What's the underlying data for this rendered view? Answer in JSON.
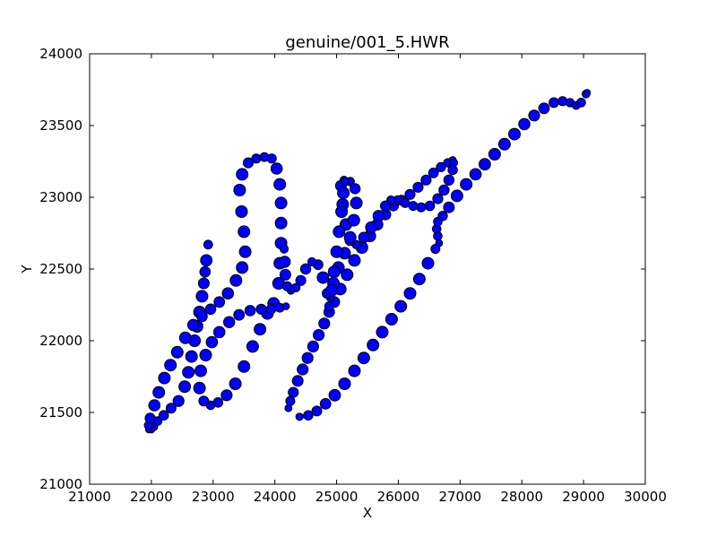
{
  "chart_data": {
    "type": "scatter",
    "title": "genuine/001_5.HWR",
    "xlabel": "X",
    "ylabel": "Y",
    "xlim": [
      21000,
      30000
    ],
    "ylim": [
      21000,
      24000
    ],
    "xticks": [
      "21000",
      "22000",
      "23000",
      "24000",
      "25000",
      "26000",
      "27000",
      "28000",
      "29000",
      "30000"
    ],
    "yticks": [
      "21000",
      "21500",
      "22000",
      "22500",
      "23000",
      "23500",
      "24000"
    ],
    "grid": false,
    "legend": "none",
    "marker_color": "#0000ff",
    "marker_edge_color": "#000000",
    "strokes": [
      {
        "name": "",
        "points": [
          [
            22920,
            22670
          ],
          [
            22890,
            22560
          ],
          [
            22870,
            22480
          ],
          [
            22850,
            22400
          ],
          [
            22820,
            22310
          ],
          [
            22780,
            22200
          ],
          [
            22740,
            22100
          ],
          [
            22700,
            22000
          ],
          [
            22650,
            21890
          ],
          [
            22600,
            21780
          ],
          [
            22540,
            21680
          ],
          [
            22440,
            21580
          ],
          [
            22320,
            21530
          ],
          [
            22200,
            21480
          ],
          [
            22100,
            21440
          ],
          [
            22040,
            21400
          ],
          [
            22000,
            21380
          ],
          [
            21960,
            21380
          ],
          [
            21950,
            21410
          ],
          [
            21980,
            21460
          ],
          [
            22050,
            21550
          ],
          [
            22120,
            21640
          ],
          [
            22210,
            21740
          ],
          [
            22310,
            21830
          ],
          [
            22420,
            21920
          ],
          [
            22550,
            22020
          ],
          [
            22680,
            22110
          ],
          [
            22820,
            22170
          ],
          [
            22960,
            22220
          ],
          [
            23100,
            22270
          ],
          [
            23240,
            22330
          ],
          [
            23370,
            22420
          ],
          [
            23470,
            22510
          ],
          [
            23520,
            22620
          ],
          [
            23500,
            22760
          ],
          [
            23460,
            22900
          ],
          [
            23430,
            23050
          ],
          [
            23470,
            23160
          ],
          [
            23570,
            23240
          ],
          [
            23700,
            23270
          ],
          [
            23830,
            23280
          ],
          [
            23950,
            23270
          ],
          [
            24030,
            23200
          ],
          [
            24080,
            23090
          ],
          [
            24100,
            22960
          ],
          [
            24100,
            22820
          ],
          [
            24100,
            22680
          ],
          [
            24080,
            22540
          ],
          [
            24060,
            22400
          ],
          [
            23980,
            22260
          ],
          [
            23880,
            22190
          ],
          [
            23760,
            22080
          ],
          [
            23640,
            21960
          ],
          [
            23500,
            21820
          ],
          [
            23360,
            21700
          ],
          [
            23220,
            21620
          ],
          [
            23080,
            21570
          ],
          [
            22960,
            21550
          ],
          [
            22850,
            21580
          ],
          [
            22780,
            21670
          ],
          [
            22800,
            21790
          ],
          [
            22880,
            21900
          ],
          [
            22980,
            21990
          ],
          [
            23100,
            22060
          ],
          [
            23260,
            22130
          ],
          [
            23420,
            22180
          ],
          [
            23600,
            22210
          ],
          [
            23780,
            22220
          ],
          [
            23940,
            22220
          ],
          [
            24080,
            22230
          ],
          [
            24180,
            22240
          ]
        ]
      },
      {
        "name": "",
        "points": [
          [
            24220,
            21530
          ],
          [
            24250,
            21580
          ],
          [
            24300,
            21640
          ],
          [
            24370,
            21720
          ],
          [
            24450,
            21800
          ],
          [
            24530,
            21880
          ],
          [
            24620,
            21960
          ],
          [
            24710,
            22040
          ],
          [
            24800,
            22120
          ],
          [
            24880,
            22200
          ],
          [
            24960,
            22270
          ],
          [
            25060,
            22360
          ],
          [
            25170,
            22460
          ],
          [
            25290,
            22560
          ],
          [
            25410,
            22650
          ],
          [
            25540,
            22730
          ],
          [
            25660,
            22810
          ],
          [
            25790,
            22880
          ],
          [
            25920,
            22940
          ],
          [
            26050,
            22980
          ],
          [
            26190,
            23020
          ],
          [
            26320,
            23070
          ],
          [
            26450,
            23120
          ],
          [
            26570,
            23170
          ],
          [
            26690,
            23210
          ],
          [
            26800,
            23240
          ],
          [
            26880,
            23260
          ],
          [
            26900,
            23240
          ],
          [
            26880,
            23190
          ],
          [
            26820,
            23120
          ],
          [
            26740,
            23050
          ],
          [
            26640,
            22990
          ],
          [
            26510,
            22940
          ],
          [
            26370,
            22930
          ],
          [
            26240,
            22940
          ],
          [
            26110,
            22960
          ],
          [
            25990,
            22980
          ],
          [
            25880,
            22980
          ],
          [
            25790,
            22940
          ],
          [
            25680,
            22870
          ],
          [
            25560,
            22790
          ],
          [
            25440,
            22720
          ],
          [
            25320,
            22670
          ],
          [
            25220,
            22700
          ],
          [
            25150,
            22810
          ],
          [
            25100,
            22950
          ],
          [
            25070,
            23080
          ],
          [
            25120,
            23120
          ],
          [
            25220,
            23110
          ],
          [
            25300,
            23060
          ],
          [
            25320,
            22960
          ],
          [
            25280,
            22840
          ],
          [
            25220,
            22720
          ],
          [
            25130,
            22610
          ],
          [
            25030,
            22510
          ],
          [
            24950,
            22400
          ],
          [
            24900,
            22300
          ],
          [
            24850,
            22330
          ],
          [
            24780,
            22440
          ],
          [
            24700,
            22530
          ],
          [
            24600,
            22550
          ],
          [
            24500,
            22500
          ],
          [
            24420,
            22420
          ],
          [
            24340,
            22370
          ],
          [
            24260,
            22350
          ],
          [
            24200,
            22380
          ],
          [
            24170,
            22460
          ],
          [
            24160,
            22550
          ],
          [
            24150,
            22640
          ]
        ]
      },
      {
        "name": "",
        "points": [
          [
            24880,
            22240
          ],
          [
            24920,
            22350
          ],
          [
            24960,
            22480
          ],
          [
            25000,
            22620
          ],
          [
            25040,
            22760
          ],
          [
            25080,
            22900
          ],
          [
            25110,
            23030
          ],
          [
            25140,
            23110
          ]
        ]
      },
      {
        "name": "",
        "points": [
          [
            26660,
            22680
          ],
          [
            26640,
            22730
          ],
          [
            26620,
            22780
          ],
          [
            26640,
            22830
          ],
          [
            26720,
            22870
          ],
          [
            26820,
            22930
          ],
          [
            26950,
            23010
          ],
          [
            27100,
            23090
          ],
          [
            27250,
            23160
          ],
          [
            27400,
            23230
          ],
          [
            27560,
            23300
          ],
          [
            27720,
            23370
          ],
          [
            27880,
            23440
          ],
          [
            28040,
            23510
          ],
          [
            28200,
            23570
          ],
          [
            28360,
            23620
          ],
          [
            28520,
            23660
          ],
          [
            28660,
            23670
          ],
          [
            28780,
            23660
          ],
          [
            28880,
            23640
          ],
          [
            28960,
            23660
          ],
          [
            29040,
            23720
          ],
          [
            29060,
            23730
          ]
        ]
      },
      {
        "name": "",
        "points": [
          [
            26600,
            22640
          ],
          [
            26480,
            22540
          ],
          [
            26340,
            22430
          ],
          [
            26190,
            22330
          ],
          [
            26040,
            22240
          ],
          [
            25890,
            22150
          ],
          [
            25740,
            22060
          ],
          [
            25590,
            21970
          ],
          [
            25440,
            21880
          ],
          [
            25290,
            21790
          ],
          [
            25130,
            21700
          ],
          [
            24970,
            21620
          ],
          [
            24820,
            21560
          ],
          [
            24680,
            21510
          ],
          [
            24540,
            21480
          ],
          [
            24400,
            21470
          ]
        ]
      }
    ]
  }
}
